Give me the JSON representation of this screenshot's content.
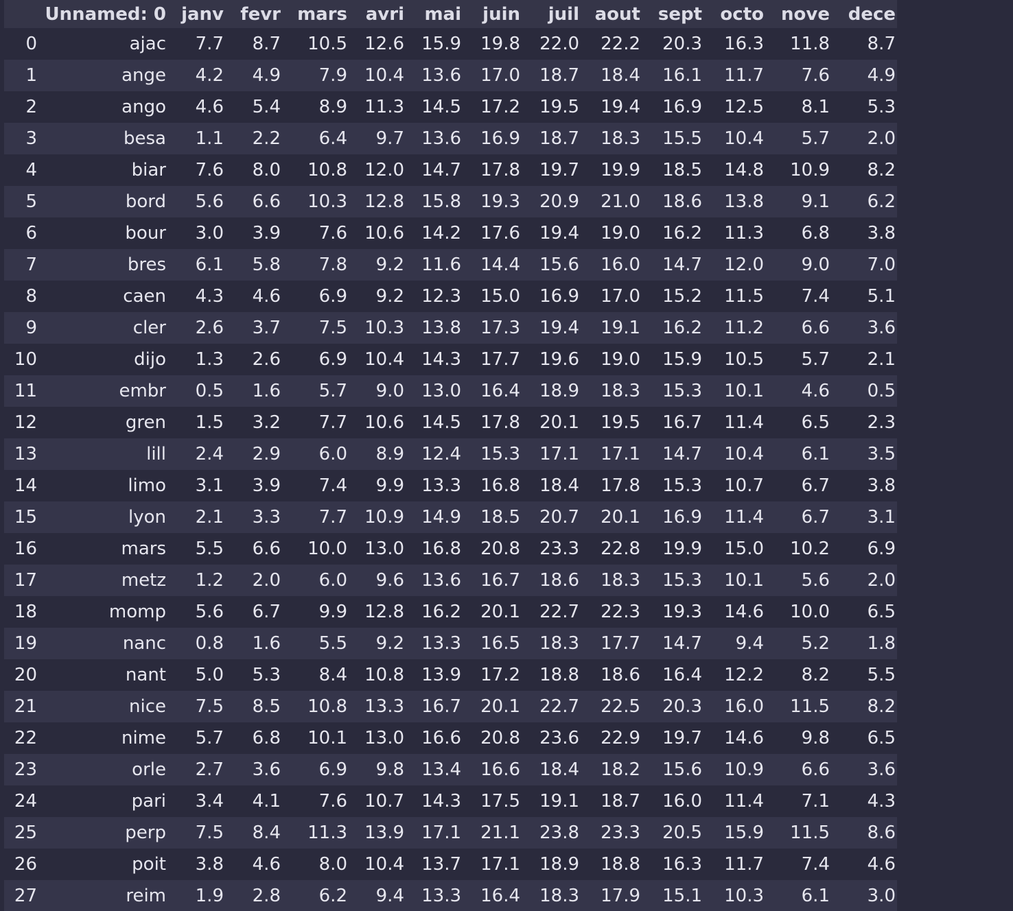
{
  "table": {
    "columns": [
      "",
      "Unnamed: 0",
      "janv",
      "fevr",
      "mars",
      "avri",
      "mai",
      "juin",
      "juil",
      "aout",
      "sept",
      "octo",
      "nove",
      "dece"
    ],
    "rows": [
      [
        "0",
        "ajac",
        "7.7",
        "8.7",
        "10.5",
        "12.6",
        "15.9",
        "19.8",
        "22.0",
        "22.2",
        "20.3",
        "16.3",
        "11.8",
        "8.7"
      ],
      [
        "1",
        "ange",
        "4.2",
        "4.9",
        "7.9",
        "10.4",
        "13.6",
        "17.0",
        "18.7",
        "18.4",
        "16.1",
        "11.7",
        "7.6",
        "4.9"
      ],
      [
        "2",
        "ango",
        "4.6",
        "5.4",
        "8.9",
        "11.3",
        "14.5",
        "17.2",
        "19.5",
        "19.4",
        "16.9",
        "12.5",
        "8.1",
        "5.3"
      ],
      [
        "3",
        "besa",
        "1.1",
        "2.2",
        "6.4",
        "9.7",
        "13.6",
        "16.9",
        "18.7",
        "18.3",
        "15.5",
        "10.4",
        "5.7",
        "2.0"
      ],
      [
        "4",
        "biar",
        "7.6",
        "8.0",
        "10.8",
        "12.0",
        "14.7",
        "17.8",
        "19.7",
        "19.9",
        "18.5",
        "14.8",
        "10.9",
        "8.2"
      ],
      [
        "5",
        "bord",
        "5.6",
        "6.6",
        "10.3",
        "12.8",
        "15.8",
        "19.3",
        "20.9",
        "21.0",
        "18.6",
        "13.8",
        "9.1",
        "6.2"
      ],
      [
        "6",
        "bour",
        "3.0",
        "3.9",
        "7.6",
        "10.6",
        "14.2",
        "17.6",
        "19.4",
        "19.0",
        "16.2",
        "11.3",
        "6.8",
        "3.8"
      ],
      [
        "7",
        "bres",
        "6.1",
        "5.8",
        "7.8",
        "9.2",
        "11.6",
        "14.4",
        "15.6",
        "16.0",
        "14.7",
        "12.0",
        "9.0",
        "7.0"
      ],
      [
        "8",
        "caen",
        "4.3",
        "4.6",
        "6.9",
        "9.2",
        "12.3",
        "15.0",
        "16.9",
        "17.0",
        "15.2",
        "11.5",
        "7.4",
        "5.1"
      ],
      [
        "9",
        "cler",
        "2.6",
        "3.7",
        "7.5",
        "10.3",
        "13.8",
        "17.3",
        "19.4",
        "19.1",
        "16.2",
        "11.2",
        "6.6",
        "3.6"
      ],
      [
        "10",
        "dijo",
        "1.3",
        "2.6",
        "6.9",
        "10.4",
        "14.3",
        "17.7",
        "19.6",
        "19.0",
        "15.9",
        "10.5",
        "5.7",
        "2.1"
      ],
      [
        "11",
        "embr",
        "0.5",
        "1.6",
        "5.7",
        "9.0",
        "13.0",
        "16.4",
        "18.9",
        "18.3",
        "15.3",
        "10.1",
        "4.6",
        "0.5"
      ],
      [
        "12",
        "gren",
        "1.5",
        "3.2",
        "7.7",
        "10.6",
        "14.5",
        "17.8",
        "20.1",
        "19.5",
        "16.7",
        "11.4",
        "6.5",
        "2.3"
      ],
      [
        "13",
        "lill",
        "2.4",
        "2.9",
        "6.0",
        "8.9",
        "12.4",
        "15.3",
        "17.1",
        "17.1",
        "14.7",
        "10.4",
        "6.1",
        "3.5"
      ],
      [
        "14",
        "limo",
        "3.1",
        "3.9",
        "7.4",
        "9.9",
        "13.3",
        "16.8",
        "18.4",
        "17.8",
        "15.3",
        "10.7",
        "6.7",
        "3.8"
      ],
      [
        "15",
        "lyon",
        "2.1",
        "3.3",
        "7.7",
        "10.9",
        "14.9",
        "18.5",
        "20.7",
        "20.1",
        "16.9",
        "11.4",
        "6.7",
        "3.1"
      ],
      [
        "16",
        "mars",
        "5.5",
        "6.6",
        "10.0",
        "13.0",
        "16.8",
        "20.8",
        "23.3",
        "22.8",
        "19.9",
        "15.0",
        "10.2",
        "6.9"
      ],
      [
        "17",
        "metz",
        "1.2",
        "2.0",
        "6.0",
        "9.6",
        "13.6",
        "16.7",
        "18.6",
        "18.3",
        "15.3",
        "10.1",
        "5.6",
        "2.0"
      ],
      [
        "18",
        "momp",
        "5.6",
        "6.7",
        "9.9",
        "12.8",
        "16.2",
        "20.1",
        "22.7",
        "22.3",
        "19.3",
        "14.6",
        "10.0",
        "6.5"
      ],
      [
        "19",
        "nanc",
        "0.8",
        "1.6",
        "5.5",
        "9.2",
        "13.3",
        "16.5",
        "18.3",
        "17.7",
        "14.7",
        "9.4",
        "5.2",
        "1.8"
      ],
      [
        "20",
        "nant",
        "5.0",
        "5.3",
        "8.4",
        "10.8",
        "13.9",
        "17.2",
        "18.8",
        "18.6",
        "16.4",
        "12.2",
        "8.2",
        "5.5"
      ],
      [
        "21",
        "nice",
        "7.5",
        "8.5",
        "10.8",
        "13.3",
        "16.7",
        "20.1",
        "22.7",
        "22.5",
        "20.3",
        "16.0",
        "11.5",
        "8.2"
      ],
      [
        "22",
        "nime",
        "5.7",
        "6.8",
        "10.1",
        "13.0",
        "16.6",
        "20.8",
        "23.6",
        "22.9",
        "19.7",
        "14.6",
        "9.8",
        "6.5"
      ],
      [
        "23",
        "orle",
        "2.7",
        "3.6",
        "6.9",
        "9.8",
        "13.4",
        "16.6",
        "18.4",
        "18.2",
        "15.6",
        "10.9",
        "6.6",
        "3.6"
      ],
      [
        "24",
        "pari",
        "3.4",
        "4.1",
        "7.6",
        "10.7",
        "14.3",
        "17.5",
        "19.1",
        "18.7",
        "16.0",
        "11.4",
        "7.1",
        "4.3"
      ],
      [
        "25",
        "perp",
        "7.5",
        "8.4",
        "11.3",
        "13.9",
        "17.1",
        "21.1",
        "23.8",
        "23.3",
        "20.5",
        "15.9",
        "11.5",
        "8.6"
      ],
      [
        "26",
        "poit",
        "3.8",
        "4.6",
        "8.0",
        "10.4",
        "13.7",
        "17.1",
        "18.9",
        "18.8",
        "16.3",
        "11.7",
        "7.4",
        "4.6"
      ],
      [
        "27",
        "reim",
        "1.9",
        "2.8",
        "6.2",
        "9.4",
        "13.3",
        "16.4",
        "18.3",
        "17.9",
        "15.1",
        "10.3",
        "6.1",
        "3.0"
      ]
    ]
  }
}
